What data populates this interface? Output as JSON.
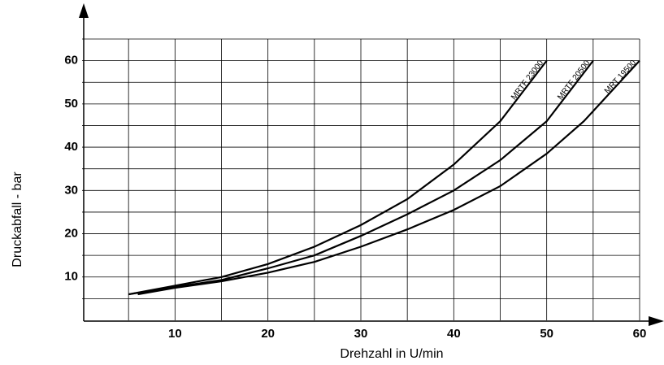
{
  "chart_data": {
    "type": "line",
    "xlabel": "Drehzahl in U/min",
    "ylabel": "Druckabfall - bar",
    "xlim": [
      0,
      60
    ],
    "ylim": [
      0,
      65
    ],
    "xticks": [
      10,
      20,
      30,
      40,
      50,
      60
    ],
    "yticks": [
      10,
      20,
      30,
      40,
      50,
      60
    ],
    "xgrid": [
      5,
      10,
      15,
      20,
      25,
      30,
      35,
      40,
      45,
      50,
      55,
      60
    ],
    "ygrid": [
      5,
      10,
      15,
      20,
      25,
      30,
      35,
      40,
      45,
      50,
      55,
      60,
      65
    ],
    "grid": true,
    "series": [
      {
        "name": "MRTF 23000",
        "color": "#000000",
        "x": [
          5,
          10,
          15,
          20,
          25,
          30,
          35,
          40,
          45,
          50
        ],
        "values": [
          6,
          8,
          10,
          13,
          17,
          22,
          28,
          36,
          46,
          60
        ]
      },
      {
        "name": "MRTF 20500",
        "color": "#000000",
        "x": [
          5,
          10,
          15,
          20,
          25,
          30,
          35,
          40,
          45,
          50,
          55
        ],
        "values": [
          6,
          7.7,
          9.3,
          12,
          15,
          19.5,
          24.5,
          30,
          37,
          46,
          60
        ]
      },
      {
        "name": "MRT 19500",
        "color": "#000000",
        "x": [
          6,
          10,
          15,
          20,
          25,
          30,
          35,
          40,
          45,
          50,
          54,
          60
        ],
        "values": [
          6,
          7.5,
          9,
          11,
          13.5,
          17,
          21,
          25.5,
          31,
          38.5,
          46,
          60
        ]
      }
    ]
  }
}
